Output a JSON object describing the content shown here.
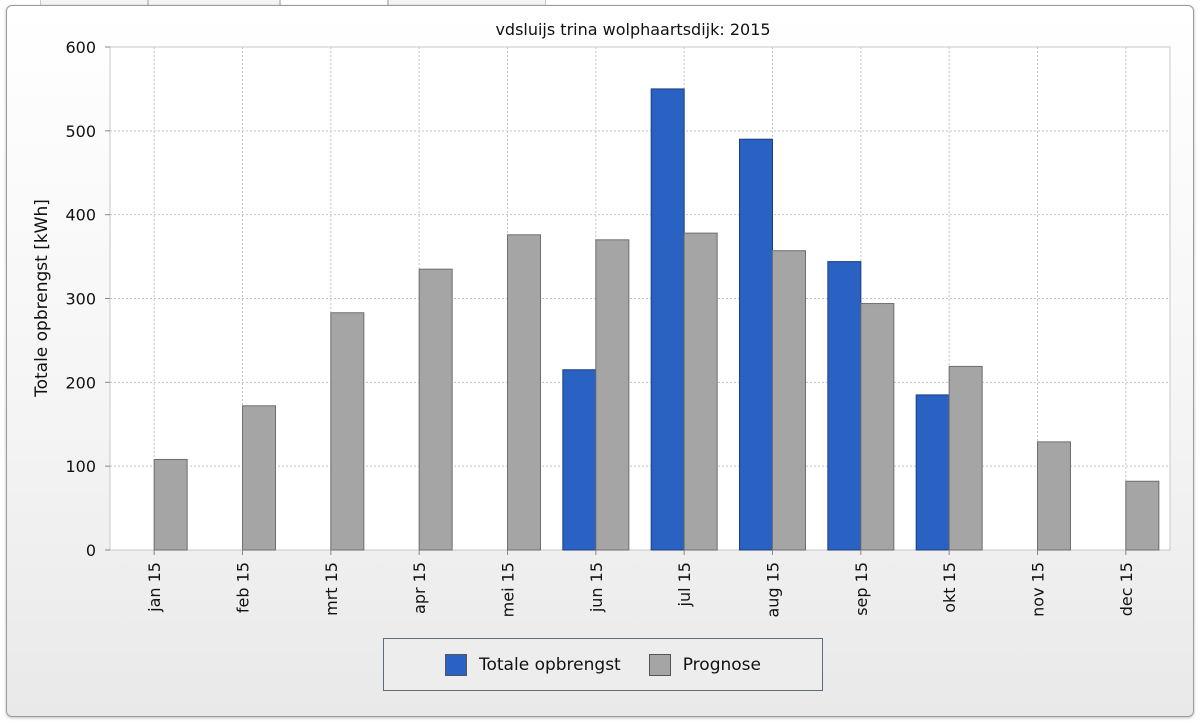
{
  "chart_data": {
    "type": "bar",
    "title": "vdsluijs trina wolphaartsdijk: 2015",
    "xlabel": "",
    "ylabel": "Totale opbrengst [kWh]",
    "ylim": [
      0,
      600
    ],
    "yticks": [
      0,
      100,
      200,
      300,
      400,
      500,
      600
    ],
    "grid": true,
    "legend_position": "bottom",
    "categories": [
      "jan 15",
      "feb 15",
      "mrt 15",
      "apr 15",
      "mei 15",
      "jun 15",
      "jul 15",
      "aug 15",
      "sep 15",
      "okt 15",
      "nov 15",
      "dec 15"
    ],
    "series": [
      {
        "name": "Totale opbrengst",
        "color": "#2962c2",
        "values": [
          null,
          null,
          null,
          null,
          null,
          215,
          550,
          490,
          344,
          185,
          null,
          null
        ]
      },
      {
        "name": "Prognose",
        "color": "#a5a5a5",
        "values": [
          108,
          172,
          283,
          335,
          376,
          370,
          378,
          357,
          294,
          219,
          129,
          82
        ]
      }
    ]
  }
}
